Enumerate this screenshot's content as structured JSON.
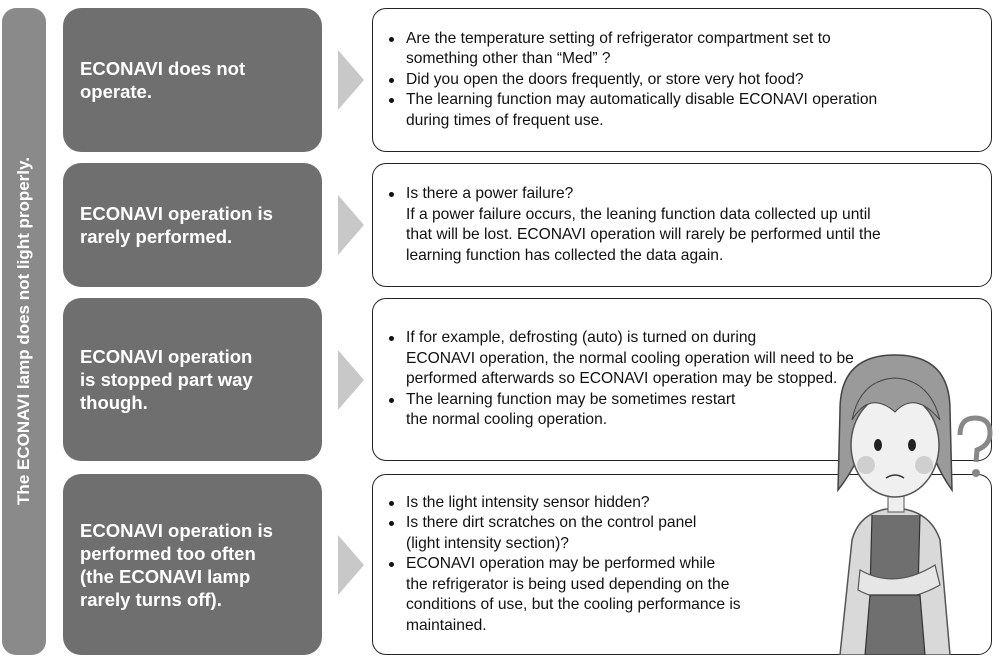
{
  "side_label": "The ECONAVI lamp does not light properly.",
  "rows": [
    {
      "problem": [
        "ECONAVI does not",
        "operate."
      ],
      "items": [
        [
          "Are the temperature setting of refrigerator compartment set to",
          "something other than “Med” ?"
        ],
        [
          "Did you open the doors frequently, or store very hot food?"
        ],
        [
          "The learning function may automatically disable ECONAVI operation",
          "during times of frequent use."
        ]
      ]
    },
    {
      "problem": [
        "ECONAVI operation is",
        "rarely performed."
      ],
      "items": [
        [
          "Is there a power failure?",
          "If a power failure occurs, the leaning function data collected up until",
          "that will be lost. ECONAVI operation will rarely be performed until the",
          "learning function has collected the data again."
        ]
      ]
    },
    {
      "problem": [
        "ECONAVI operation",
        "is stopped part way",
        "though."
      ],
      "items": [
        [
          "If for example, defrosting (auto) is turned on during",
          "ECONAVI operation, the normal cooling operation will need to be",
          "performed afterwards so ECONAVI operation may be stopped."
        ],
        [
          "The learning function may be sometimes restart",
          "the normal cooling operation."
        ]
      ]
    },
    {
      "problem": [
        "ECONAVI operation is",
        "performed too often",
        "(the ECONAVI lamp",
        "rarely turns off)."
      ],
      "items": [
        [
          "Is the light intensity sensor hidden?"
        ],
        [
          "Is there dirt scratches on the control panel",
          "(light intensity section)?"
        ],
        [
          "ECONAVI operation may be performed while",
          "the refrigerator is being used depending on the",
          "conditions of use, but the cooling performance is",
          "maintained."
        ]
      ]
    }
  ]
}
